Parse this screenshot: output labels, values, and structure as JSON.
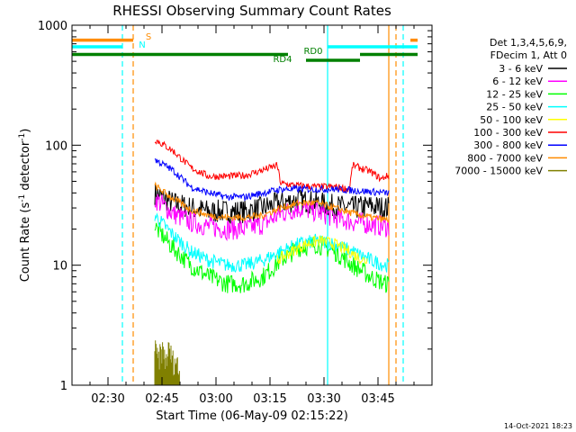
{
  "chart_data": {
    "type": "line",
    "title": "RHESSI Observing Summary Count Rates",
    "xlabel": "Start Time (06-May-09 02:15:22)",
    "ylabel_main": "Count Rate (s",
    "ylabel_sup1": "-1",
    "ylabel_mid": " detector",
    "ylabel_sup2": "-1",
    "ylabel_end": ")",
    "yscale": "log",
    "ylim": [
      1,
      1000
    ],
    "xlim_min": [
      140,
      240
    ],
    "yticks": [
      "1",
      "10",
      "100",
      "1000"
    ],
    "xticks": [
      {
        "t": 150,
        "label": "02:30"
      },
      {
        "t": 165,
        "label": "02:45"
      },
      {
        "t": 180,
        "label": "03:00"
      },
      {
        "t": 195,
        "label": "03:15"
      },
      {
        "t": 210,
        "label": "03:30"
      },
      {
        "t": 225,
        "label": "03:45"
      }
    ],
    "legend_header": [
      "Det 1,3,4,5,6,9,",
      "FDecim 1, Att 0"
    ],
    "series": [
      {
        "name": "3 - 6 keV",
        "color": "#000000",
        "start": 163,
        "end": 228,
        "values": [
          [
            163,
            40
          ],
          [
            168,
            33
          ],
          [
            173,
            30
          ],
          [
            178,
            28
          ],
          [
            183,
            28
          ],
          [
            188,
            28
          ],
          [
            193,
            30
          ],
          [
            198,
            33
          ],
          [
            203,
            35
          ],
          [
            208,
            33
          ],
          [
            213,
            31
          ],
          [
            218,
            30
          ],
          [
            223,
            31
          ],
          [
            227,
            30
          ]
        ]
      },
      {
        "name": "6 - 12 keV",
        "color": "#ff00ff",
        "start": 163,
        "end": 228,
        "values": [
          [
            163,
            36
          ],
          [
            168,
            27
          ],
          [
            173,
            23
          ],
          [
            178,
            21
          ],
          [
            183,
            20
          ],
          [
            188,
            20
          ],
          [
            193,
            22
          ],
          [
            198,
            27
          ],
          [
            203,
            30
          ],
          [
            208,
            28
          ],
          [
            213,
            25
          ],
          [
            218,
            23
          ],
          [
            223,
            22
          ],
          [
            227,
            21
          ]
        ]
      },
      {
        "name": "12 - 25 keV",
        "color": "#00ff00",
        "start": 163,
        "end": 228,
        "values": [
          [
            163,
            21
          ],
          [
            168,
            14
          ],
          [
            173,
            10
          ],
          [
            178,
            8
          ],
          [
            183,
            7
          ],
          [
            188,
            7
          ],
          [
            193,
            8
          ],
          [
            198,
            11
          ],
          [
            203,
            14
          ],
          [
            208,
            15
          ],
          [
            213,
            13
          ],
          [
            218,
            10
          ],
          [
            223,
            8
          ],
          [
            227,
            7
          ]
        ]
      },
      {
        "name": "25 - 50 keV",
        "color": "#00ffff",
        "start": 163,
        "end": 228,
        "values": [
          [
            163,
            26
          ],
          [
            168,
            18
          ],
          [
            173,
            13
          ],
          [
            178,
            11
          ],
          [
            183,
            10
          ],
          [
            188,
            10
          ],
          [
            193,
            11
          ],
          [
            198,
            13
          ],
          [
            203,
            15
          ],
          [
            208,
            16
          ],
          [
            213,
            15
          ],
          [
            218,
            13
          ],
          [
            223,
            11
          ],
          [
            227,
            10
          ]
        ]
      },
      {
        "name": "50 - 100 keV",
        "color": "#ffff00",
        "start": 197,
        "end": 222,
        "values": [
          [
            197,
            11
          ],
          [
            201,
            13
          ],
          [
            205,
            15
          ],
          [
            209,
            16
          ],
          [
            213,
            15
          ],
          [
            217,
            13
          ],
          [
            221,
            11
          ]
        ]
      },
      {
        "name": "100 - 300 keV",
        "color": "#ff0000",
        "start": 163,
        "end": 228,
        "values": [
          [
            163,
            112
          ],
          [
            168,
            90
          ],
          [
            173,
            65
          ],
          [
            178,
            55
          ],
          [
            183,
            55
          ],
          [
            188,
            56
          ],
          [
            193,
            62
          ],
          [
            197,
            68
          ],
          [
            198,
            48
          ],
          [
            203,
            46
          ],
          [
            208,
            45
          ],
          [
            213,
            45
          ],
          [
            217,
            43
          ],
          [
            218,
            68
          ],
          [
            223,
            60
          ],
          [
            226,
            52
          ],
          [
            227,
            55
          ]
        ]
      },
      {
        "name": "300 - 800 keV",
        "color": "#0000ff",
        "start": 163,
        "end": 228,
        "values": [
          [
            163,
            76
          ],
          [
            168,
            62
          ],
          [
            173,
            45
          ],
          [
            178,
            40
          ],
          [
            183,
            37
          ],
          [
            188,
            37
          ],
          [
            193,
            40
          ],
          [
            198,
            43
          ],
          [
            203,
            43
          ],
          [
            208,
            43
          ],
          [
            213,
            43
          ],
          [
            218,
            42
          ],
          [
            223,
            41
          ],
          [
            227,
            40
          ]
        ]
      },
      {
        "name": "800 - 7000 keV",
        "color": "#ff8c00",
        "start": 163,
        "end": 228,
        "values": [
          [
            163,
            46
          ],
          [
            168,
            36
          ],
          [
            173,
            29
          ],
          [
            178,
            26
          ],
          [
            183,
            25
          ],
          [
            188,
            25
          ],
          [
            193,
            26
          ],
          [
            198,
            30
          ],
          [
            203,
            33
          ],
          [
            208,
            33
          ],
          [
            213,
            30
          ],
          [
            218,
            27
          ],
          [
            223,
            25
          ],
          [
            227,
            24
          ]
        ]
      },
      {
        "name": "7000 - 15000 keV",
        "color": "#808000",
        "start": 163,
        "end": 170,
        "values": [
          [
            163,
            2
          ],
          [
            164,
            1.6
          ],
          [
            165,
            2
          ],
          [
            166,
            1.6
          ],
          [
            167,
            2
          ],
          [
            168,
            1.6
          ],
          [
            169,
            1.6
          ],
          [
            170,
            1.2
          ]
        ]
      }
    ],
    "flags": [
      {
        "name": "S",
        "label": "S",
        "color": "#ff8c00",
        "y": 750,
        "segments": [
          [
            140,
            157
          ],
          [
            234,
            236
          ]
        ]
      },
      {
        "name": "N",
        "label": "N",
        "color": "#00ffff",
        "y": 660,
        "segments": [
          [
            140,
            154
          ],
          [
            211,
            236
          ]
        ]
      },
      {
        "name": "RD0",
        "label": "RD0",
        "color": "#008000",
        "y": 570,
        "segments": [
          [
            140,
            200
          ],
          [
            220,
            236
          ]
        ]
      },
      {
        "name": "RD4",
        "label": "RD4",
        "color": "#008000",
        "y": 510,
        "segments": [
          [
            205,
            220
          ]
        ]
      }
    ],
    "vlines": [
      {
        "t": 154,
        "color": "#00ffff",
        "style": "dashed"
      },
      {
        "t": 157,
        "color": "#ff8c00",
        "style": "dashed"
      },
      {
        "t": 211,
        "color": "#00ffff",
        "style": "solid"
      },
      {
        "t": 228,
        "color": "#ff8c00",
        "style": "solid"
      },
      {
        "t": 230,
        "color": "#ff8c00",
        "style": "dashed"
      },
      {
        "t": 232,
        "color": "#00ffff",
        "style": "dashed"
      }
    ],
    "footer": "14-Oct-2021 18:23"
  }
}
